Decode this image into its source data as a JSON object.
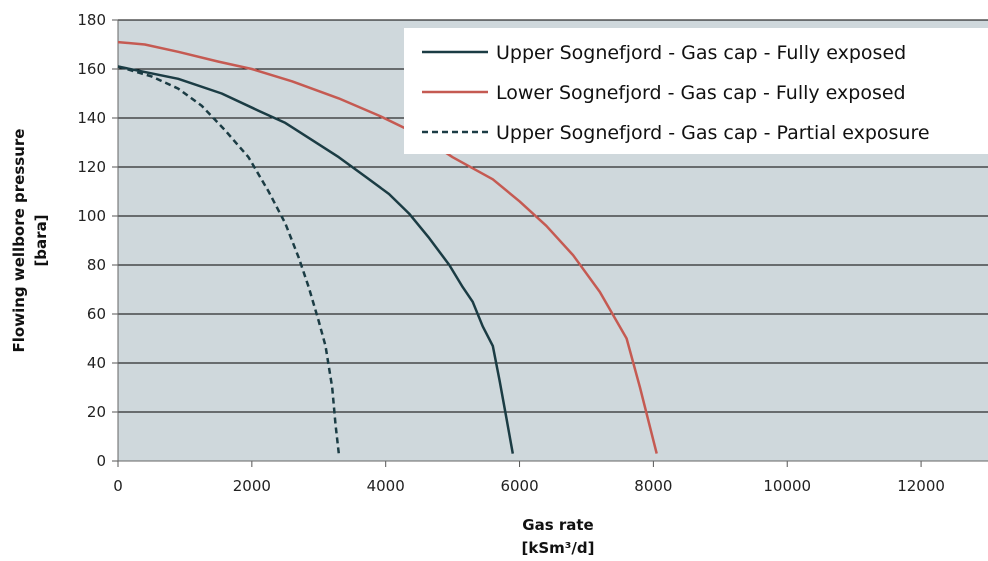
{
  "chart_data": {
    "type": "line",
    "title": "",
    "xlabel": [
      "Gas rate",
      "[kSm³/d]"
    ],
    "ylabel": [
      "Flowing wellbore pressure",
      "[bara]"
    ],
    "xlim": [
      0,
      13000
    ],
    "ylim": [
      0,
      180
    ],
    "x_ticks": [
      0,
      2000,
      4000,
      6000,
      8000,
      10000,
      12000
    ],
    "y_ticks": [
      0,
      20,
      40,
      60,
      80,
      100,
      120,
      140,
      160,
      180
    ],
    "grid": "horizontal",
    "legend_position": "top-right",
    "colors": {
      "plot_background": "#cfd8dc",
      "gridline": "#000000"
    },
    "series": [
      {
        "name": "Upper Sognefjord - Gas cap - Fully exposed",
        "color": "#1b3c44",
        "dash": "solid",
        "points": [
          [
            0,
            161
          ],
          [
            900,
            156
          ],
          [
            1550,
            150
          ],
          [
            2100,
            143
          ],
          [
            2500,
            138
          ],
          [
            2900,
            131
          ],
          [
            3300,
            124
          ],
          [
            3700,
            116
          ],
          [
            4050,
            109
          ],
          [
            4350,
            101
          ],
          [
            4650,
            91
          ],
          [
            4950,
            80
          ],
          [
            5150,
            71
          ],
          [
            5300,
            65
          ],
          [
            5450,
            55
          ],
          [
            5600,
            47
          ],
          [
            5700,
            33
          ],
          [
            5800,
            18
          ],
          [
            5900,
            3
          ]
        ]
      },
      {
        "name": "Lower Sognefjord - Gas cap - Fully exposed",
        "color": "#c55a52",
        "dash": "solid",
        "points": [
          [
            0,
            171
          ],
          [
            400,
            170
          ],
          [
            900,
            167
          ],
          [
            1500,
            163
          ],
          [
            2000,
            160
          ],
          [
            2600,
            155
          ],
          [
            3300,
            148
          ],
          [
            3900,
            141
          ],
          [
            4500,
            133
          ],
          [
            5000,
            124
          ],
          [
            5600,
            115
          ],
          [
            6000,
            106
          ],
          [
            6400,
            96
          ],
          [
            6800,
            84
          ],
          [
            7200,
            69
          ],
          [
            7600,
            50
          ],
          [
            7800,
            30
          ],
          [
            8050,
            3
          ]
        ]
      },
      {
        "name": "Upper Sognefjord - Gas cap - Partial exposure",
        "color": "#1b3c44",
        "dash": "dashed",
        "points": [
          [
            0,
            161
          ],
          [
            500,
            157
          ],
          [
            900,
            152
          ],
          [
            1250,
            145
          ],
          [
            1600,
            135
          ],
          [
            1950,
            124
          ],
          [
            2250,
            110
          ],
          [
            2500,
            97
          ],
          [
            2700,
            83
          ],
          [
            2850,
            71
          ],
          [
            3000,
            57
          ],
          [
            3100,
            47
          ],
          [
            3200,
            30
          ],
          [
            3250,
            15
          ],
          [
            3300,
            3
          ]
        ]
      }
    ]
  }
}
